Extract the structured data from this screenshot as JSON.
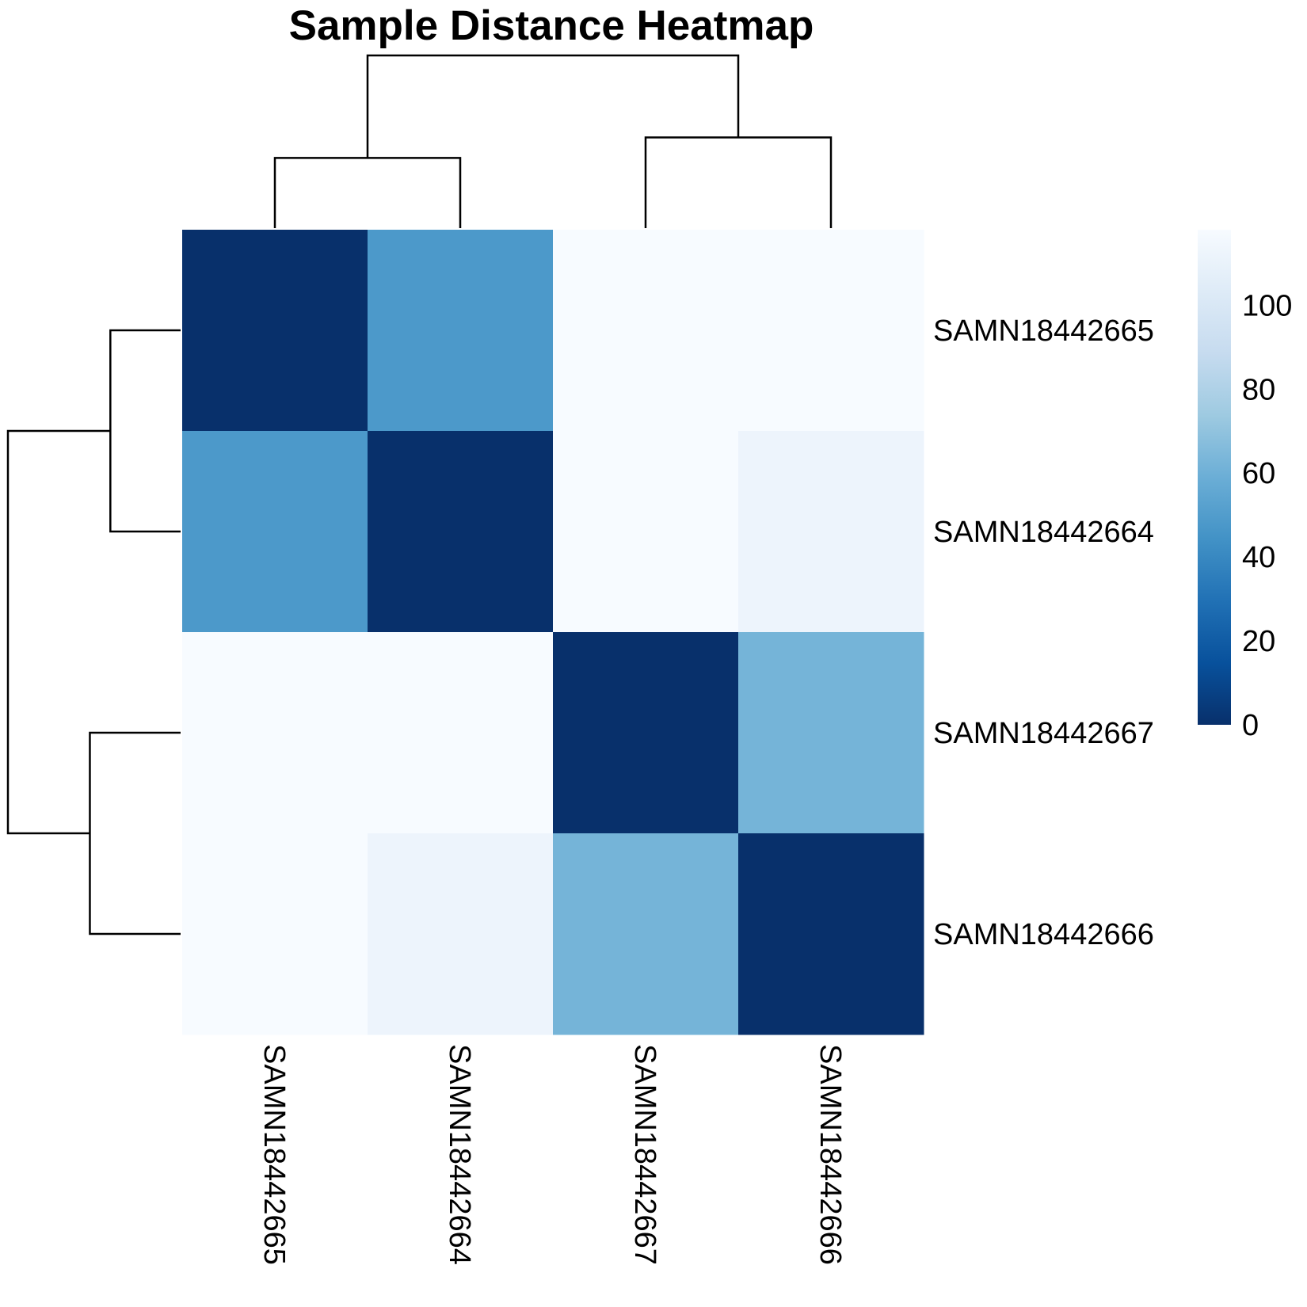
{
  "chart_data": {
    "type": "heatmap",
    "title": "Sample Distance Heatmap",
    "rows": [
      "SAMN18442665",
      "SAMN18442664",
      "SAMN18442667",
      "SAMN18442666"
    ],
    "columns": [
      "SAMN18442665",
      "SAMN18442664",
      "SAMN18442667",
      "SAMN18442666"
    ],
    "values": [
      [
        0,
        48,
        118,
        118
      ],
      [
        48,
        0,
        118,
        112
      ],
      [
        118,
        118,
        0,
        62
      ],
      [
        118,
        112,
        62,
        0
      ]
    ],
    "color_scale": {
      "min": 0,
      "max": 118,
      "ticks": [
        0,
        20,
        40,
        60,
        80,
        100
      ],
      "palette": "Blues (dark = low distance)",
      "stops": [
        "#08306b",
        "#08519c",
        "#2171b5",
        "#4292c6",
        "#6baed6",
        "#9ecae1",
        "#c6dbef",
        "#deebf7",
        "#f7fbff"
      ]
    },
    "legend_position": "right",
    "dendrogram": {
      "column_tree": [
        [
          "SAMN18442665",
          "SAMN18442664"
        ],
        [
          "SAMN18442667",
          "SAMN18442666"
        ]
      ],
      "column_heights": {
        "pair1": 48,
        "pair2": 62,
        "root": 118
      },
      "row_tree": [
        [
          "SAMN18442665",
          "SAMN18442664"
        ],
        [
          "SAMN18442667",
          "SAMN18442666"
        ]
      ],
      "row_heights": {
        "pair1": 48,
        "pair2": 62,
        "root": 118
      }
    }
  }
}
